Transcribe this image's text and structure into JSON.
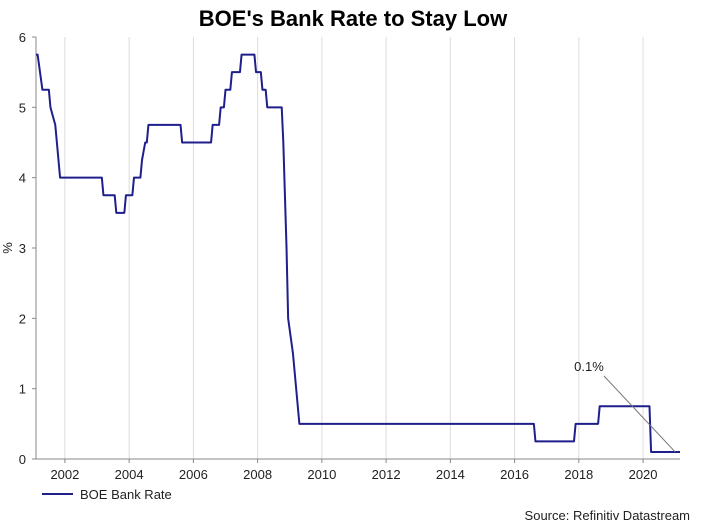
{
  "chart_data": {
    "type": "line",
    "title": "BOE's Bank Rate to Stay Low",
    "ylabel": "%",
    "xlabel": "",
    "xlim": [
      2001.1,
      2021.15
    ],
    "ylim": [
      0,
      6
    ],
    "yticks": [
      0,
      1,
      2,
      3,
      4,
      5,
      6
    ],
    "xticks": [
      2002,
      2004,
      2006,
      2008,
      2010,
      2012,
      2014,
      2016,
      2018,
      2020
    ],
    "grid": "vertical",
    "legend": "bottom-left",
    "line_color": "#1f1f8c",
    "annotation": {
      "text": "0.1%",
      "x": 2021.0,
      "y": 0.1
    },
    "source": "Source: Refinitiv Datastream",
    "series": [
      {
        "name": "BOE Bank Rate",
        "x": [
          2001.1,
          2001.15,
          2001.3,
          2001.35,
          2001.5,
          2001.55,
          2001.7,
          2001.85,
          2001.95,
          2003.15,
          2003.2,
          2003.55,
          2003.6,
          2003.85,
          2003.9,
          2004.1,
          2004.15,
          2004.35,
          2004.4,
          2004.5,
          2004.55,
          2004.6,
          2004.65,
          2005.6,
          2005.65,
          2006.55,
          2006.6,
          2006.8,
          2006.85,
          2006.95,
          2007.0,
          2007.15,
          2007.2,
          2007.45,
          2007.5,
          2007.65,
          2007.7,
          2007.9,
          2007.95,
          2008.1,
          2008.15,
          2008.25,
          2008.3,
          2008.4,
          2008.45,
          2008.75,
          2008.8,
          2008.9,
          2008.95,
          2009.1,
          2009.3,
          2016.6,
          2016.65,
          2017.85,
          2017.9,
          2018.6,
          2018.65,
          2020.2,
          2020.25,
          2021.15
        ],
        "y": [
          5.75,
          5.75,
          5.25,
          5.25,
          5.25,
          5.0,
          4.75,
          4.0,
          4.0,
          4.0,
          3.75,
          3.75,
          3.5,
          3.5,
          3.75,
          3.75,
          4.0,
          4.0,
          4.25,
          4.5,
          4.5,
          4.75,
          4.75,
          4.75,
          4.5,
          4.5,
          4.75,
          4.75,
          5.0,
          5.0,
          5.25,
          5.25,
          5.5,
          5.5,
          5.75,
          5.75,
          5.75,
          5.75,
          5.5,
          5.5,
          5.25,
          5.25,
          5.0,
          5.0,
          5.0,
          5.0,
          4.5,
          3.0,
          2.0,
          1.5,
          0.5,
          0.5,
          0.25,
          0.25,
          0.5,
          0.5,
          0.75,
          0.75,
          0.1,
          0.1
        ]
      }
    ]
  }
}
